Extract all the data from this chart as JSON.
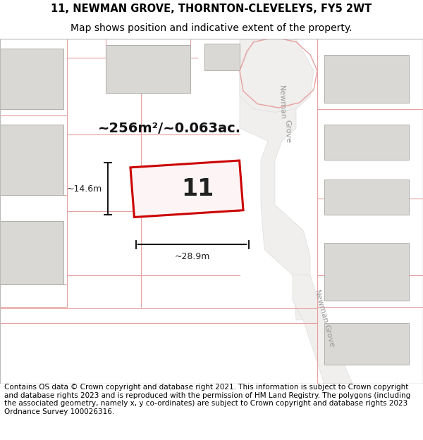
{
  "title_line1": "11, NEWMAN GROVE, THORNTON-CLEVELEYS, FY5 2WT",
  "title_line2": "Map shows position and indicative extent of the property.",
  "footer_text": "Contains OS data © Crown copyright and database right 2021. This information is subject to Crown copyright and database rights 2023 and is reproduced with the permission of HM Land Registry. The polygons (including the associated geometry, namely x, y co-ordinates) are subject to Crown copyright and database rights 2023 Ordnance Survey 100026316.",
  "map_bg": "#f7f6f4",
  "building_fill": "#d9d8d5",
  "building_edge": "#b0aeaa",
  "highlight_fill": "none",
  "highlight_edge": "#cc0000",
  "road_label_color": "#aaaaaa",
  "boundary_color": "#e8a0a0",
  "area_label": "~256m²/~0.063ac.",
  "house_number": "11",
  "dim_width": "~28.9m",
  "dim_height": "~14.6m",
  "title_fontsize": 10.5,
  "footer_fontsize": 7.5
}
